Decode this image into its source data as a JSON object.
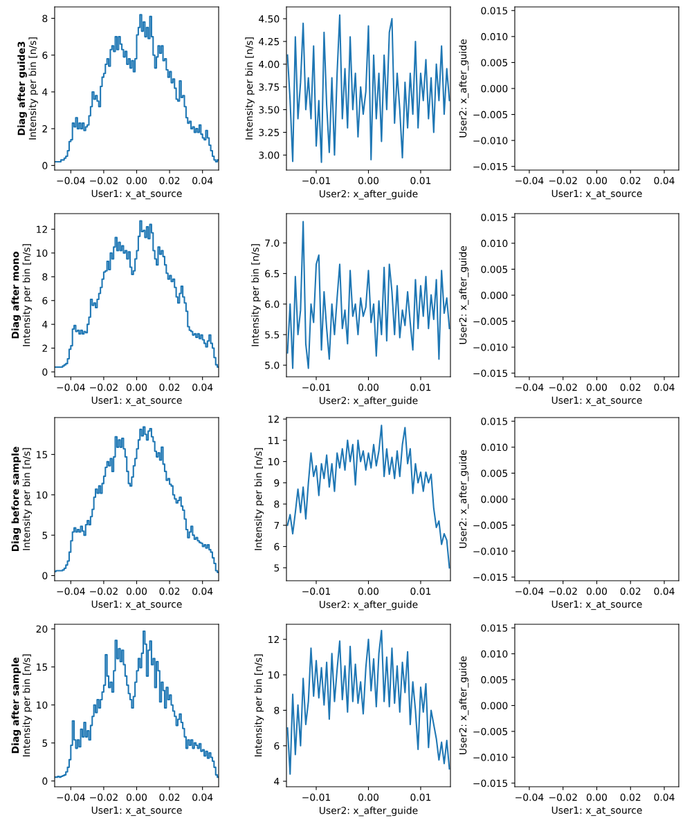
{
  "chart_data": [
    {
      "type": "step",
      "title": "Diag after guide3",
      "xlabel": "User1: x_at_source",
      "ylabel": "Intensity per bin [n/s]",
      "x": [
        -0.0495,
        -0.0485,
        -0.0475,
        -0.0465,
        -0.0455,
        -0.0445,
        -0.0435,
        -0.0425,
        -0.0415,
        -0.0405,
        -0.0395,
        -0.0385,
        -0.0375,
        -0.0365,
        -0.0355,
        -0.0345,
        -0.0335,
        -0.0325,
        -0.0315,
        -0.0305,
        -0.0295,
        -0.0285,
        -0.0275,
        -0.0265,
        -0.0255,
        -0.0245,
        -0.0235,
        -0.0225,
        -0.0215,
        -0.0205,
        -0.0195,
        -0.0185,
        -0.0175,
        -0.0165,
        -0.0155,
        -0.0145,
        -0.0135,
        -0.0125,
        -0.0115,
        -0.0105,
        -0.0095,
        -0.0085,
        -0.0075,
        -0.0065,
        -0.0055,
        -0.0045,
        -0.0035,
        -0.0025,
        -0.0015,
        -0.0005,
        0.0005,
        0.0015,
        0.0025,
        0.0035,
        0.0045,
        0.0055,
        0.0065,
        0.0075,
        0.0085,
        0.0095,
        0.0105,
        0.0115,
        0.0125,
        0.0135,
        0.0145,
        0.0155,
        0.0165,
        0.0175,
        0.0185,
        0.0195,
        0.0205,
        0.0215,
        0.0225,
        0.0235,
        0.0245,
        0.0255,
        0.0265,
        0.0275,
        0.0285,
        0.0295,
        0.0305,
        0.0315,
        0.0325,
        0.0335,
        0.0345,
        0.0355,
        0.0365,
        0.0375,
        0.0385,
        0.0395,
        0.0405,
        0.0415,
        0.0425,
        0.0435,
        0.0445,
        0.0455,
        0.0465,
        0.0475,
        0.0485,
        0.0495
      ],
      "series": [
        {
          "color": "#1f77b4",
          "values": [
            0.2,
            0.2,
            0.2,
            0.2,
            0.3,
            0.3,
            0.4,
            0.5,
            0.8,
            1.3,
            1.4,
            2.3,
            2.1,
            2.6,
            2.0,
            2.3,
            2.0,
            2.3,
            1.9,
            2.1,
            2.2,
            2.7,
            3.2,
            4.0,
            3.6,
            3.8,
            3.5,
            3.2,
            4.3,
            4.8,
            5.0,
            5.5,
            5.8,
            5.4,
            6.3,
            6.5,
            6.2,
            7.0,
            6.3,
            7.0,
            6.6,
            6.3,
            5.9,
            6.2,
            5.5,
            5.8,
            5.3,
            5.7,
            5.1,
            5.8,
            7.1,
            7.5,
            8.2,
            7.3,
            7.8,
            7.0,
            7.5,
            6.9,
            8.1,
            7.0,
            6.0,
            5.3,
            5.9,
            6.5,
            6.1,
            6.5,
            5.7,
            5.8,
            5.2,
            4.8,
            5.1,
            4.5,
            4.7,
            4.2,
            3.6,
            3.5,
            4.6,
            3.7,
            3.8,
            3.2,
            2.6,
            2.3,
            2.4,
            2.0,
            2.1,
            1.8,
            2.0,
            1.8,
            2.2,
            1.7,
            1.5,
            1.4,
            1.9,
            1.5,
            1.1,
            0.8,
            0.5,
            0.3,
            0.2,
            0.3
          ]
        }
      ],
      "xlim": [
        -0.0498,
        0.0498
      ],
      "ylim": [
        -0.25,
        8.62
      ],
      "xticks": [
        {
          "value": -0.04,
          "label": "−0.04"
        },
        {
          "value": -0.02,
          "label": "−0.02"
        },
        {
          "value": 0,
          "label": "0.00"
        },
        0.02,
        0.04
      ],
      "yticks": [
        0,
        2,
        4,
        6,
        8
      ]
    },
    {
      "type": "line",
      "xlabel": "User2: x_after_guide",
      "ylabel": "Intensity per bin [n/s]",
      "x": [
        -0.0155,
        -0.015,
        -0.0145,
        -0.014,
        -0.0135,
        -0.013,
        -0.0125,
        -0.012,
        -0.0115,
        -0.011,
        -0.0105,
        -0.01,
        -0.0095,
        -0.009,
        -0.0085,
        -0.008,
        -0.0075,
        -0.007,
        -0.0065,
        -0.006,
        -0.0055,
        -0.005,
        -0.0045,
        -0.004,
        -0.0035,
        -0.003,
        -0.0025,
        -0.002,
        -0.0015,
        -0.001,
        -0.0005,
        0,
        0.0005,
        0.001,
        0.0015,
        0.002,
        0.0025,
        0.003,
        0.0035,
        0.004,
        0.0045,
        0.005,
        0.0055,
        0.006,
        0.0065,
        0.007,
        0.0075,
        0.008,
        0.0085,
        0.009,
        0.0095,
        0.01,
        0.0105,
        0.011,
        0.0115,
        0.012,
        0.0125,
        0.013,
        0.0135,
        0.014,
        0.0145,
        0.015,
        0.0155
      ],
      "series": [
        {
          "color": "#1f77b4",
          "values": [
            4.1,
            3.6,
            2.93,
            4.3,
            3.4,
            3.8,
            4.45,
            3.5,
            3.85,
            3.4,
            4.2,
            3.1,
            3.6,
            2.92,
            4.35,
            3.55,
            3.03,
            3.85,
            3.0,
            3.9,
            4.54,
            3.4,
            3.95,
            3.3,
            4.3,
            3.5,
            3.9,
            3.2,
            3.75,
            3.45,
            3.7,
            4.42,
            2.95,
            4.1,
            3.4,
            3.9,
            3.15,
            4.1,
            3.5,
            4.35,
            4.5,
            3.35,
            3.9,
            3.5,
            2.97,
            3.8,
            3.3,
            3.9,
            3.45,
            4.25,
            3.3,
            3.9,
            3.6,
            4.05,
            3.4,
            3.85,
            3.25,
            4.0,
            3.6,
            4.2,
            3.45,
            3.95,
            3.6
          ]
        }
      ],
      "xlim": [
        -0.0157,
        0.0157
      ],
      "ylim": [
        2.835,
        4.63
      ],
      "xticks": [
        {
          "value": -0.01,
          "label": "−0.01"
        },
        {
          "value": 0,
          "label": "0.00"
        },
        0.01
      ],
      "yticks": [
        {
          "value": 3,
          "label": "3.00"
        },
        3.25,
        {
          "value": 3.5,
          "label": "3.50"
        },
        3.75,
        {
          "value": 4,
          "label": "4.00"
        },
        4.25,
        {
          "value": 4.5,
          "label": "4.50"
        }
      ]
    },
    {
      "type": "heatmap",
      "xlabel": "User1: x_at_source",
      "ylabel": "User2: x_after_guide",
      "xlim": [
        -0.0486,
        0.0486
      ],
      "ylim": [
        -0.0157,
        0.0157
      ],
      "xticks": [
        {
          "value": -0.04,
          "label": "−0.04"
        },
        {
          "value": -0.02,
          "label": "−0.02"
        },
        {
          "value": 0,
          "label": "0.00"
        },
        0.02,
        0.04
      ],
      "yticks": [
        {
          "value": -0.015,
          "label": "−0.015"
        },
        {
          "value": -0.01,
          "label": "−0.010"
        },
        {
          "value": -0.005,
          "label": "−0.005"
        },
        {
          "value": 0,
          "label": "0.000"
        },
        0.005,
        {
          "value": 0.01,
          "label": "0.010"
        },
        0.015
      ]
    },
    {
      "type": "step",
      "title": "Diag after mono",
      "xlabel": "User1: x_at_source",
      "ylabel": "Intensity per bin [n/s]",
      "x": [
        -0.0495,
        -0.0485,
        -0.0475,
        -0.0465,
        -0.0455,
        -0.0445,
        -0.0435,
        -0.0425,
        -0.0415,
        -0.0405,
        -0.0395,
        -0.0385,
        -0.0375,
        -0.0365,
        -0.0355,
        -0.0345,
        -0.0335,
        -0.0325,
        -0.0315,
        -0.0305,
        -0.0295,
        -0.0285,
        -0.0275,
        -0.0265,
        -0.0255,
        -0.0245,
        -0.0235,
        -0.0225,
        -0.0215,
        -0.0205,
        -0.0195,
        -0.0185,
        -0.0175,
        -0.0165,
        -0.0155,
        -0.0145,
        -0.0135,
        -0.0125,
        -0.0115,
        -0.0105,
        -0.0095,
        -0.0085,
        -0.0075,
        -0.0065,
        -0.0055,
        -0.0045,
        -0.0035,
        -0.0025,
        -0.0015,
        -0.0005,
        0.0005,
        0.0015,
        0.0025,
        0.0035,
        0.0045,
        0.0055,
        0.0065,
        0.0075,
        0.0085,
        0.0095,
        0.0105,
        0.0115,
        0.0125,
        0.0135,
        0.0145,
        0.0155,
        0.0165,
        0.0175,
        0.0185,
        0.0195,
        0.0205,
        0.0215,
        0.0225,
        0.0235,
        0.0245,
        0.0255,
        0.0265,
        0.0275,
        0.0285,
        0.0295,
        0.0305,
        0.0315,
        0.0325,
        0.0335,
        0.0345,
        0.0355,
        0.0365,
        0.0375,
        0.0385,
        0.0395,
        0.0405,
        0.0415,
        0.0425,
        0.0435,
        0.0445,
        0.0455,
        0.0465,
        0.0475,
        0.0485,
        0.0495
      ],
      "series": [
        {
          "color": "#1f77b4",
          "values": [
            0.4,
            0.4,
            0.4,
            0.4,
            0.4,
            0.5,
            0.6,
            0.7,
            1.1,
            1.9,
            2.2,
            3.6,
            3.9,
            3.4,
            3.5,
            3.2,
            3.5,
            3.2,
            3.4,
            3.3,
            4.0,
            4.6,
            6.1,
            5.6,
            5.8,
            5.4,
            6.1,
            6.6,
            7.1,
            7.8,
            8.4,
            8.5,
            9.3,
            8.6,
            10.0,
            9.5,
            10.5,
            11.3,
            10.2,
            10.9,
            10.2,
            10.6,
            10.0,
            10.2,
            9.5,
            10.1,
            8.8,
            8.2,
            8.5,
            9.5,
            10.2,
            11.4,
            12.7,
            11.8,
            11.9,
            11.3,
            12.2,
            11.2,
            12.4,
            11.7,
            10.2,
            9.5,
            9.0,
            10.5,
            9.9,
            10.2,
            9.7,
            9.0,
            8.3,
            7.8,
            8.1,
            7.6,
            7.8,
            7.1,
            6.3,
            5.8,
            6.6,
            7.2,
            6.3,
            5.8,
            5.1,
            3.8,
            3.5,
            3.4,
            3.1,
            3.2,
            2.9,
            3.2,
            2.8,
            3.1,
            2.7,
            2.4,
            2.1,
            2.6,
            3.1,
            2.4,
            2.0,
            1.2,
            0.6,
            0.4
          ]
        }
      ],
      "xlim": [
        -0.0498,
        0.0498
      ],
      "ylim": [
        -0.41,
        13.31
      ],
      "xticks": [
        {
          "value": -0.04,
          "label": "−0.04"
        },
        {
          "value": -0.02,
          "label": "−0.02"
        },
        {
          "value": 0,
          "label": "0.00"
        },
        0.02,
        0.04
      ],
      "yticks": [
        0,
        2,
        4,
        6,
        8,
        10,
        12
      ]
    },
    {
      "type": "line",
      "xlabel": "User2: x_after_guide",
      "ylabel": "Intensity per bin [n/s]",
      "x": [
        -0.0155,
        -0.015,
        -0.0145,
        -0.014,
        -0.0135,
        -0.013,
        -0.0125,
        -0.012,
        -0.0115,
        -0.011,
        -0.0105,
        -0.01,
        -0.0095,
        -0.009,
        -0.0085,
        -0.008,
        -0.0075,
        -0.007,
        -0.0065,
        -0.006,
        -0.0055,
        -0.005,
        -0.0045,
        -0.004,
        -0.0035,
        -0.003,
        -0.0025,
        -0.002,
        -0.0015,
        -0.001,
        -0.0005,
        0,
        0.0005,
        0.001,
        0.0015,
        0.002,
        0.0025,
        0.003,
        0.0035,
        0.004,
        0.0045,
        0.005,
        0.0055,
        0.006,
        0.0065,
        0.007,
        0.0075,
        0.008,
        0.0085,
        0.009,
        0.0095,
        0.01,
        0.0105,
        0.011,
        0.0115,
        0.012,
        0.0125,
        0.013,
        0.0135,
        0.014,
        0.0145,
        0.015,
        0.0155
      ],
      "series": [
        {
          "color": "#1f77b4",
          "values": [
            5.2,
            6.0,
            4.95,
            6.45,
            5.5,
            5.9,
            7.35,
            5.35,
            4.95,
            6.0,
            5.7,
            6.65,
            6.8,
            5.25,
            6.2,
            5.6,
            5.1,
            6.0,
            5.5,
            6.1,
            6.65,
            5.6,
            5.9,
            5.35,
            6.55,
            5.8,
            6.0,
            5.5,
            6.1,
            5.8,
            5.95,
            6.55,
            5.7,
            6.0,
            5.15,
            6.05,
            5.5,
            6.6,
            5.4,
            6.65,
            6.2,
            5.5,
            6.3,
            5.45,
            5.9,
            5.65,
            6.2,
            5.7,
            5.25,
            6.4,
            5.6,
            6.3,
            5.8,
            6.45,
            5.6,
            6.15,
            5.75,
            6.4,
            5.1,
            6.55,
            5.85,
            6.1,
            5.6
          ]
        }
      ],
      "xlim": [
        -0.0157,
        0.0157
      ],
      "ylim": [
        4.81,
        7.48
      ],
      "xticks": [
        {
          "value": -0.01,
          "label": "−0.01"
        },
        {
          "value": 0,
          "label": "0.00"
        },
        0.01
      ],
      "yticks": [
        {
          "value": 5,
          "label": "5.0"
        },
        5.5,
        {
          "value": 6,
          "label": "6.0"
        },
        6.5,
        {
          "value": 7,
          "label": "7.0"
        }
      ]
    },
    {
      "type": "heatmap",
      "xlabel": "User1: x_at_source",
      "ylabel": "User2: x_after_guide",
      "xlim": [
        -0.0486,
        0.0486
      ],
      "ylim": [
        -0.0157,
        0.0157
      ],
      "xticks": [
        {
          "value": -0.04,
          "label": "−0.04"
        },
        {
          "value": -0.02,
          "label": "−0.02"
        },
        {
          "value": 0,
          "label": "0.00"
        },
        0.02,
        0.04
      ],
      "yticks": [
        {
          "value": -0.015,
          "label": "−0.015"
        },
        {
          "value": -0.01,
          "label": "−0.010"
        },
        {
          "value": -0.005,
          "label": "−0.005"
        },
        {
          "value": 0,
          "label": "0.000"
        },
        0.005,
        {
          "value": 0.01,
          "label": "0.010"
        },
        0.015
      ]
    },
    {
      "type": "step",
      "title": "Diag before sample",
      "xlabel": "User1: x_at_source",
      "ylabel": "Intensity per bin [n/s]",
      "x": [
        -0.0495,
        -0.0485,
        -0.0475,
        -0.0465,
        -0.0455,
        -0.0445,
        -0.0435,
        -0.0425,
        -0.0415,
        -0.0405,
        -0.0395,
        -0.0385,
        -0.0375,
        -0.0365,
        -0.0355,
        -0.0345,
        -0.0335,
        -0.0325,
        -0.0315,
        -0.0305,
        -0.0295,
        -0.0285,
        -0.0275,
        -0.0265,
        -0.0255,
        -0.0245,
        -0.0235,
        -0.0225,
        -0.0215,
        -0.0205,
        -0.0195,
        -0.0185,
        -0.0175,
        -0.0165,
        -0.0155,
        -0.0145,
        -0.0135,
        -0.0125,
        -0.0115,
        -0.0105,
        -0.0095,
        -0.0085,
        -0.0075,
        -0.0065,
        -0.0055,
        -0.0045,
        -0.0035,
        -0.0025,
        -0.0015,
        -0.0005,
        0.0005,
        0.0015,
        0.0025,
        0.0035,
        0.0045,
        0.0055,
        0.0065,
        0.0075,
        0.0085,
        0.0095,
        0.0105,
        0.0115,
        0.0125,
        0.0135,
        0.0145,
        0.0155,
        0.0165,
        0.0175,
        0.0185,
        0.0195,
        0.0205,
        0.0215,
        0.0225,
        0.0235,
        0.0245,
        0.0255,
        0.0265,
        0.0275,
        0.0285,
        0.0295,
        0.0305,
        0.0315,
        0.0325,
        0.0335,
        0.0345,
        0.0355,
        0.0365,
        0.0375,
        0.0385,
        0.0395,
        0.0405,
        0.0415,
        0.0425,
        0.0435,
        0.0445,
        0.0455,
        0.0465,
        0.0475,
        0.0485,
        0.0495
      ],
      "series": [
        {
          "color": "#1f77b4",
          "values": [
            0.5,
            0.6,
            0.6,
            0.6,
            0.6,
            0.7,
            0.9,
            1.3,
            1.8,
            2.9,
            4.3,
            5.4,
            5.9,
            5.4,
            5.7,
            5.4,
            6.1,
            5.5,
            5.0,
            6.3,
            6.8,
            6.3,
            7.3,
            8.2,
            9.7,
            10.7,
            10.2,
            11.1,
            10.2,
            11.4,
            12.3,
            13.4,
            14.1,
            13.6,
            14.5,
            12.9,
            14.7,
            17.2,
            15.9,
            16.8,
            15.9,
            17.0,
            15.7,
            14.7,
            12.9,
            11.4,
            11.1,
            12.2,
            13.6,
            14.5,
            15.7,
            16.8,
            18.1,
            17.3,
            18.4,
            17.5,
            16.8,
            17.9,
            18.2,
            17.2,
            16.6,
            15.4,
            14.7,
            15.2,
            14.3,
            15.9,
            13.8,
            12.9,
            11.8,
            12.0,
            11.3,
            11.1,
            10.0,
            9.5,
            9.0,
            9.3,
            9.7,
            8.6,
            8.1,
            7.0,
            5.7,
            4.7,
            5.4,
            6.1,
            5.0,
            4.5,
            4.7,
            4.3,
            4.1,
            4.0,
            3.6,
            3.8,
            3.4,
            3.8,
            3.2,
            2.9,
            2.2,
            1.5,
            0.6,
            0.4
          ]
        }
      ],
      "xlim": [
        -0.0498,
        0.0498
      ],
      "ylim": [
        -0.64,
        19.57
      ],
      "xticks": [
        {
          "value": -0.04,
          "label": "−0.04"
        },
        {
          "value": -0.02,
          "label": "−0.02"
        },
        {
          "value": 0,
          "label": "0.00"
        },
        0.02,
        0.04
      ],
      "yticks": [
        0,
        5,
        10,
        15
      ]
    },
    {
      "type": "line",
      "xlabel": "User2: x_after_guide",
      "ylabel": "Intensity per bin [n/s]",
      "x": [
        -0.0155,
        -0.015,
        -0.0145,
        -0.014,
        -0.0135,
        -0.013,
        -0.0125,
        -0.012,
        -0.0115,
        -0.011,
        -0.0105,
        -0.01,
        -0.0095,
        -0.009,
        -0.0085,
        -0.008,
        -0.0075,
        -0.007,
        -0.0065,
        -0.006,
        -0.0055,
        -0.005,
        -0.0045,
        -0.004,
        -0.0035,
        -0.003,
        -0.0025,
        -0.002,
        -0.0015,
        -0.001,
        -0.0005,
        0,
        0.0005,
        0.001,
        0.0015,
        0.002,
        0.0025,
        0.003,
        0.0035,
        0.004,
        0.0045,
        0.005,
        0.0055,
        0.006,
        0.0065,
        0.007,
        0.0075,
        0.008,
        0.0085,
        0.009,
        0.0095,
        0.01,
        0.0105,
        0.011,
        0.0115,
        0.012,
        0.0125,
        0.013,
        0.0135,
        0.014,
        0.0145,
        0.015,
        0.0155
      ],
      "series": [
        {
          "color": "#1f77b4",
          "values": [
            7.0,
            7.5,
            6.6,
            7.6,
            8.7,
            7.6,
            8.8,
            7.3,
            9.0,
            10.4,
            9.3,
            9.8,
            8.4,
            9.9,
            9.2,
            10.3,
            8.8,
            9.9,
            8.6,
            10.4,
            9.7,
            10.6,
            9.6,
            11.0,
            10.0,
            10.8,
            8.9,
            11.0,
            10.0,
            10.5,
            9.6,
            10.4,
            9.7,
            10.8,
            9.8,
            10.5,
            11.7,
            9.3,
            10.6,
            9.4,
            10.2,
            9.2,
            10.5,
            9.3,
            10.8,
            11.6,
            9.9,
            10.6,
            8.5,
            9.9,
            9.0,
            9.5,
            8.6,
            9.5,
            9.0,
            9.4,
            7.8,
            6.9,
            7.2,
            6.1,
            6.6,
            6.3,
            5.0
          ]
        }
      ],
      "xlim": [
        -0.0157,
        0.0157
      ],
      "ylim": [
        4.39,
        12.07
      ],
      "xticks": [
        {
          "value": -0.01,
          "label": "−0.01"
        },
        {
          "value": 0,
          "label": "0.00"
        },
        0.01
      ],
      "yticks": [
        5,
        6,
        7,
        8,
        9,
        10,
        11,
        12
      ]
    },
    {
      "type": "heatmap",
      "xlabel": "User1: x_at_source",
      "ylabel": "User2: x_after_guide",
      "xlim": [
        -0.0486,
        0.0486
      ],
      "ylim": [
        -0.0157,
        0.0157
      ],
      "xticks": [
        {
          "value": -0.04,
          "label": "−0.04"
        },
        {
          "value": -0.02,
          "label": "−0.02"
        },
        {
          "value": 0,
          "label": "0.00"
        },
        0.02,
        0.04
      ],
      "yticks": [
        {
          "value": -0.015,
          "label": "−0.015"
        },
        {
          "value": -0.01,
          "label": "−0.010"
        },
        {
          "value": -0.005,
          "label": "−0.005"
        },
        {
          "value": 0,
          "label": "0.000"
        },
        0.005,
        {
          "value": 0.01,
          "label": "0.010"
        },
        0.015
      ]
    },
    {
      "type": "step",
      "title": "Diag after sample",
      "xlabel": "User1: x_at_source",
      "ylabel": "Intensity per bin [n/s]",
      "x": [
        -0.0495,
        -0.0485,
        -0.0475,
        -0.0465,
        -0.0455,
        -0.0445,
        -0.0435,
        -0.0425,
        -0.0415,
        -0.0405,
        -0.0395,
        -0.0385,
        -0.0375,
        -0.0365,
        -0.0355,
        -0.0345,
        -0.0335,
        -0.0325,
        -0.0315,
        -0.0305,
        -0.0295,
        -0.0285,
        -0.0275,
        -0.0265,
        -0.0255,
        -0.0245,
        -0.0235,
        -0.0225,
        -0.0215,
        -0.0205,
        -0.0195,
        -0.0185,
        -0.0175,
        -0.0165,
        -0.0155,
        -0.0145,
        -0.0135,
        -0.0125,
        -0.0115,
        -0.0105,
        -0.0095,
        -0.0085,
        -0.0075,
        -0.0065,
        -0.0055,
        -0.0045,
        -0.0035,
        -0.0025,
        -0.0015,
        -0.0005,
        0.0005,
        0.0015,
        0.0025,
        0.0035,
        0.0045,
        0.0055,
        0.0065,
        0.0075,
        0.0085,
        0.0095,
        0.0105,
        0.0115,
        0.0125,
        0.0135,
        0.0145,
        0.0155,
        0.0165,
        0.0175,
        0.0185,
        0.0195,
        0.0205,
        0.0215,
        0.0225,
        0.0235,
        0.0245,
        0.0255,
        0.0265,
        0.0275,
        0.0285,
        0.0295,
        0.0305,
        0.0315,
        0.0325,
        0.0335,
        0.0345,
        0.0355,
        0.0365,
        0.0375,
        0.0385,
        0.0395,
        0.0405,
        0.0415,
        0.0425,
        0.0435,
        0.0445,
        0.0455,
        0.0465,
        0.0475,
        0.0485,
        0.0495
      ],
      "series": [
        {
          "color": "#1f77b4",
          "values": [
            0.5,
            0.5,
            0.6,
            0.5,
            0.6,
            0.7,
            0.8,
            1.2,
            1.8,
            2.8,
            4.7,
            7.9,
            5.4,
            4.3,
            5.4,
            4.5,
            6.8,
            5.8,
            7.7,
            5.8,
            6.6,
            5.4,
            7.3,
            8.5,
            10.0,
            9.0,
            10.7,
            9.6,
            10.7,
            11.7,
            12.6,
            16.6,
            13.8,
            12.3,
            13.0,
            11.7,
            14.5,
            18.5,
            16.1,
            17.4,
            15.7,
            17.2,
            15.3,
            13.8,
            12.6,
            11.5,
            10.7,
            9.6,
            11.1,
            13.0,
            14.5,
            16.1,
            14.9,
            16.8,
            19.7,
            18.0,
            13.8,
            17.2,
            18.4,
            15.3,
            16.1,
            12.3,
            15.7,
            14.5,
            10.4,
            13.0,
            11.9,
            9.6,
            12.3,
            10.7,
            11.3,
            10.0,
            9.2,
            8.5,
            7.3,
            8.1,
            8.8,
            7.7,
            6.9,
            5.8,
            4.3,
            5.4,
            4.7,
            5.4,
            4.3,
            5.0,
            4.7,
            4.3,
            4.9,
            3.9,
            4.1,
            3.3,
            3.9,
            3.0,
            3.7,
            3.1,
            2.6,
            1.8,
            0.8,
            0.5
          ]
        }
      ],
      "xlim": [
        -0.0498,
        0.0498
      ],
      "ylim": [
        -0.76,
        20.61
      ],
      "xticks": [
        {
          "value": -0.04,
          "label": "−0.04"
        },
        {
          "value": -0.02,
          "label": "−0.02"
        },
        {
          "value": 0,
          "label": "0.00"
        },
        0.02,
        0.04
      ],
      "yticks": [
        0,
        5,
        10,
        15,
        20
      ]
    },
    {
      "type": "line",
      "xlabel": "User2: x_after_guide",
      "ylabel": "Intensity per bin [n/s]",
      "x": [
        -0.0155,
        -0.015,
        -0.0145,
        -0.014,
        -0.0135,
        -0.013,
        -0.0125,
        -0.012,
        -0.0115,
        -0.011,
        -0.0105,
        -0.01,
        -0.0095,
        -0.009,
        -0.0085,
        -0.008,
        -0.0075,
        -0.007,
        -0.0065,
        -0.006,
        -0.0055,
        -0.005,
        -0.0045,
        -0.004,
        -0.0035,
        -0.003,
        -0.0025,
        -0.002,
        -0.0015,
        -0.001,
        -0.0005,
        0,
        0.0005,
        0.001,
        0.0015,
        0.002,
        0.0025,
        0.003,
        0.0035,
        0.004,
        0.0045,
        0.005,
        0.0055,
        0.006,
        0.0065,
        0.007,
        0.0075,
        0.008,
        0.0085,
        0.009,
        0.0095,
        0.01,
        0.0105,
        0.011,
        0.0115,
        0.012,
        0.0125,
        0.013,
        0.0135,
        0.014,
        0.0145,
        0.015,
        0.0155
      ],
      "series": [
        {
          "color": "#1f77b4",
          "values": [
            7.0,
            4.4,
            8.9,
            5.5,
            8.3,
            6.0,
            9.8,
            7.2,
            8.5,
            11.5,
            8.8,
            10.8,
            8.7,
            10.4,
            8.3,
            10.7,
            7.5,
            11.2,
            8.5,
            10.3,
            11.9,
            8.6,
            10.5,
            7.9,
            11.6,
            8.5,
            10.6,
            8.4,
            9.6,
            7.8,
            10.4,
            12.0,
            9.1,
            10.9,
            8.2,
            11.2,
            12.5,
            8.5,
            11.0,
            8.2,
            11.5,
            8.4,
            10.5,
            7.9,
            10.7,
            9.0,
            11.3,
            7.2,
            9.6,
            8.0,
            5.8,
            9.3,
            7.9,
            9.5,
            5.9,
            8.0,
            7.2,
            6.4,
            5.2,
            6.2,
            5.0,
            6.3,
            4.7
          ]
        }
      ],
      "xlim": [
        -0.0157,
        0.0157
      ],
      "ylim": [
        3.69,
        12.85
      ],
      "xticks": [
        {
          "value": -0.01,
          "label": "−0.01"
        },
        {
          "value": 0,
          "label": "0.00"
        },
        0.01
      ],
      "yticks": [
        4,
        6,
        8,
        10,
        12
      ]
    },
    {
      "type": "heatmap",
      "xlabel": "User1: x_at_source",
      "ylabel": "User2: x_after_guide",
      "xlim": [
        -0.0486,
        0.0486
      ],
      "ylim": [
        -0.0157,
        0.0157
      ],
      "xticks": [
        {
          "value": -0.04,
          "label": "−0.04"
        },
        {
          "value": -0.02,
          "label": "−0.02"
        },
        {
          "value": 0,
          "label": "0.00"
        },
        0.02,
        0.04
      ],
      "yticks": [
        {
          "value": -0.015,
          "label": "−0.015"
        },
        {
          "value": -0.01,
          "label": "−0.010"
        },
        {
          "value": -0.005,
          "label": "−0.005"
        },
        {
          "value": 0,
          "label": "0.000"
        },
        0.005,
        {
          "value": 0.01,
          "label": "0.010"
        },
        0.015
      ]
    }
  ]
}
